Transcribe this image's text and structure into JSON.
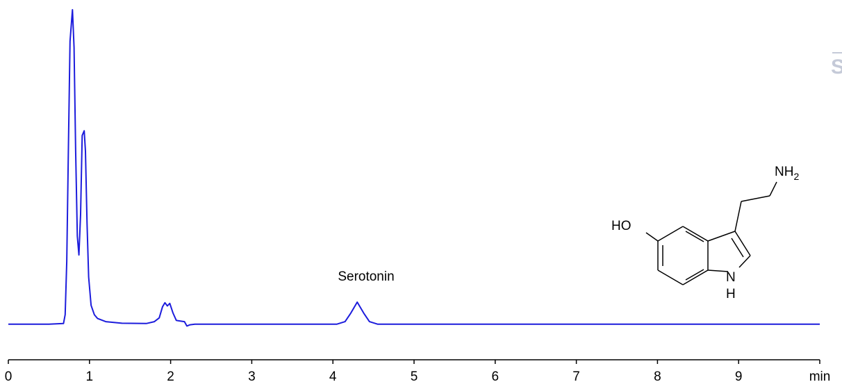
{
  "chart_data": {
    "type": "line",
    "annotations": [
      "Serotonin"
    ],
    "watermark": "S",
    "structure_labels": {
      "amine": "NH",
      "amine_subscript": "2",
      "hydroxyl": "HO",
      "ring_n": "N",
      "ring_h": "H"
    },
    "x": [
      0,
      0.5,
      0.68,
      0.7,
      0.72,
      0.74,
      0.76,
      0.79,
      0.81,
      0.83,
      0.85,
      0.87,
      0.89,
      0.91,
      0.935,
      0.95,
      0.97,
      0.99,
      1.02,
      1.06,
      1.1,
      1.2,
      1.4,
      1.7,
      1.8,
      1.86,
      1.9,
      1.93,
      1.96,
      1.99,
      2.03,
      2.07,
      2.12,
      2.17,
      2.2,
      2.24,
      2.3,
      4.05,
      4.15,
      4.22,
      4.3,
      4.38,
      4.45,
      4.55,
      10
    ],
    "series": [
      {
        "color": "#1c1cdc",
        "values": [
          0,
          0,
          0.2,
          3,
          20,
          55,
          90,
          100,
          88,
          55,
          28,
          22,
          35,
          60,
          61.5,
          55,
          32,
          15,
          6,
          3,
          1.8,
          0.8,
          0.3,
          0.2,
          0.8,
          2,
          5.5,
          6.8,
          5.8,
          6.6,
          3.5,
          1.2,
          1.0,
          0.8,
          -0.6,
          -0.2,
          0,
          0,
          0.8,
          3.5,
          7,
          3.5,
          0.8,
          0,
          0
        ]
      }
    ],
    "xlim": [
      0,
      10
    ],
    "ylim": [
      -10,
      100
    ],
    "xticks": [
      0,
      1,
      2,
      3,
      4,
      5,
      6,
      7,
      8,
      9,
      {
        "value": 10,
        "label": "min"
      }
    ]
  }
}
